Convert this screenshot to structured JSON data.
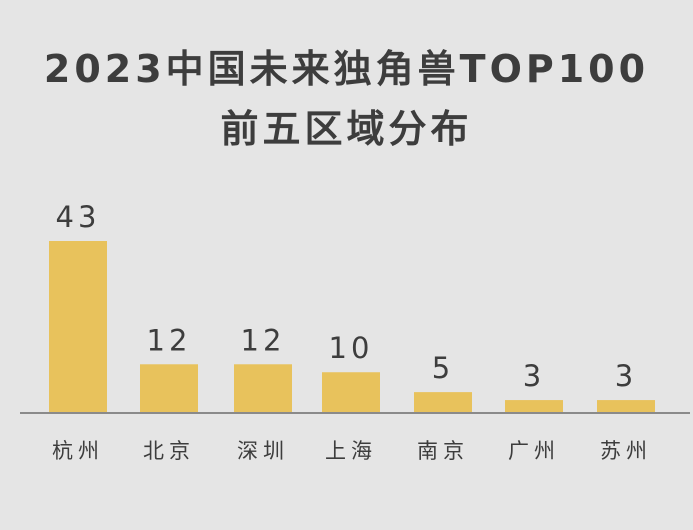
{
  "colors": {
    "background": "#e5e5e5",
    "bar": "#e8c25c",
    "text": "#3d3d3d",
    "axis": "#8a8a8a"
  },
  "chart_data": {
    "type": "bar",
    "title": [
      "2023中国未来独角兽TOP100",
      "前五区域分布"
    ],
    "categories": [
      "杭州",
      "北京",
      "深圳",
      "上海",
      "南京",
      "广州",
      "苏州"
    ],
    "values": [
      43,
      12,
      12,
      10,
      5,
      3,
      3
    ],
    "xlabel": "",
    "ylabel": "",
    "ylim": [
      0,
      43
    ],
    "grid": false,
    "legend": "none"
  }
}
